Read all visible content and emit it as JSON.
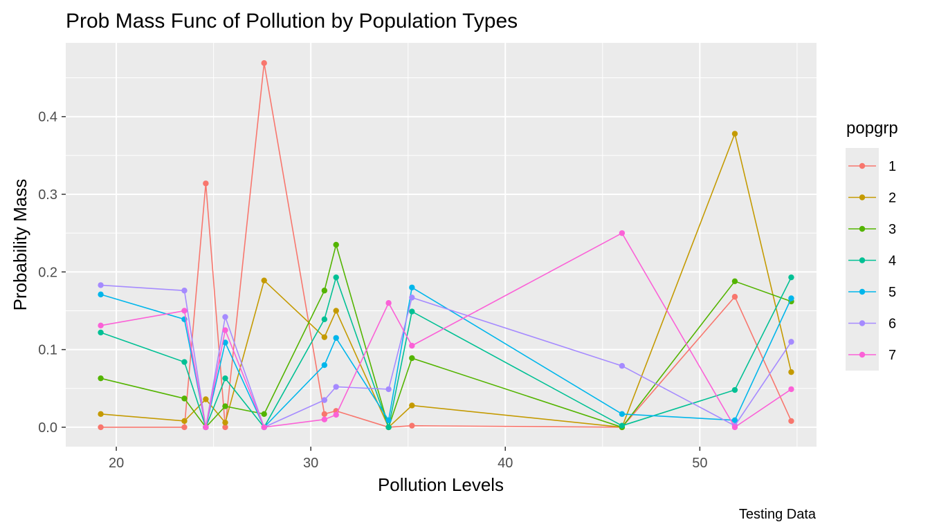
{
  "chart_data": {
    "type": "line",
    "title": "Prob Mass Func of Pollution by Population Types",
    "xlabel": "Pollution Levels",
    "ylabel": "Probability Mass",
    "caption": "Testing Data",
    "legend_title": "popgrp",
    "legend_position": "right",
    "grid": true,
    "xlim": [
      17.4,
      56.0
    ],
    "ylim": [
      -0.025,
      0.495
    ],
    "x_ticks": [
      20,
      30,
      40,
      50
    ],
    "y_ticks": [
      0.0,
      0.1,
      0.2,
      0.3,
      0.4
    ],
    "x_tick_labels": [
      "20",
      "30",
      "40",
      "50"
    ],
    "y_tick_labels": [
      "0.0",
      "0.1",
      "0.2",
      "0.3",
      "0.4"
    ],
    "x": [
      19.2,
      23.5,
      24.6,
      25.6,
      27.6,
      30.7,
      31.3,
      34.0,
      35.2,
      46.0,
      51.8,
      54.7
    ],
    "series": [
      {
        "name": "1",
        "color": "#F8766D",
        "values": [
          0.0,
          0.0,
          0.314,
          0.0,
          0.469,
          0.017,
          0.021,
          0.0,
          0.002,
          0.0,
          0.168,
          0.008
        ]
      },
      {
        "name": "2",
        "color": "#C49A00",
        "values": [
          0.017,
          0.008,
          0.036,
          0.006,
          0.189,
          0.116,
          0.15,
          0.0,
          0.028,
          0.0,
          0.378,
          0.071
        ]
      },
      {
        "name": "3",
        "color": "#53B400",
        "values": [
          0.063,
          0.037,
          0.0,
          0.027,
          0.017,
          0.176,
          0.235,
          0.0,
          0.089,
          0.0,
          0.188,
          0.162
        ]
      },
      {
        "name": "4",
        "color": "#00C094",
        "values": [
          0.122,
          0.084,
          0.0,
          0.063,
          0.0,
          0.139,
          0.193,
          0.0,
          0.149,
          0.002,
          0.048,
          0.193
        ]
      },
      {
        "name": "5",
        "color": "#00B6EB",
        "values": [
          0.171,
          0.139,
          0.0,
          0.109,
          0.0,
          0.08,
          0.115,
          0.009,
          0.18,
          0.017,
          0.009,
          0.166
        ]
      },
      {
        "name": "6",
        "color": "#A58AFF",
        "values": [
          0.183,
          0.176,
          0.0,
          0.142,
          0.0,
          0.035,
          0.052,
          0.049,
          0.167,
          0.079,
          0.002,
          0.11
        ]
      },
      {
        "name": "7",
        "color": "#FB61D7",
        "values": [
          0.131,
          0.15,
          0.0,
          0.125,
          0.0,
          0.01,
          0.016,
          0.16,
          0.105,
          0.25,
          0.0,
          0.049
        ]
      }
    ]
  }
}
